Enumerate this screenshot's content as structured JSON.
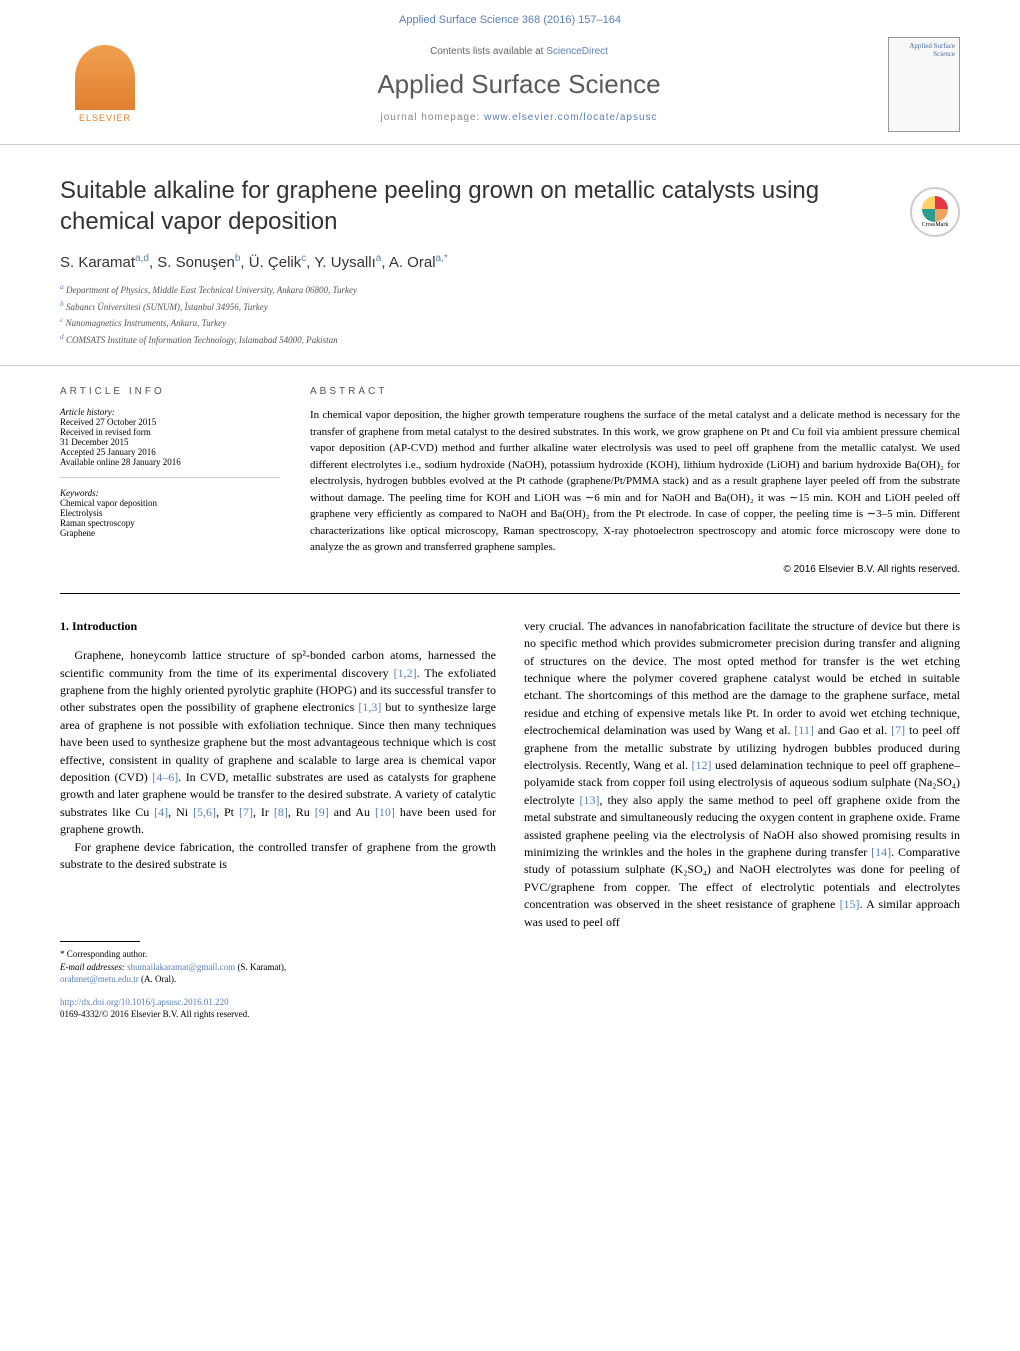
{
  "colors": {
    "link": "#5a7fb5",
    "text": "#000000",
    "heading": "#333333",
    "muted": "#666666",
    "accent_orange": "#e08030"
  },
  "typography": {
    "body_font": "Georgia, serif",
    "heading_font": "Arial, sans-serif",
    "title_size_pt": 24,
    "body_size_pt": 12,
    "abstract_size_pt": 11,
    "small_size_pt": 9
  },
  "header": {
    "citation": "Applied Surface Science 368 (2016) 157–164",
    "contents_text": "Contents lists available at ",
    "contents_link": "ScienceDirect",
    "journal_title": "Applied Surface Science",
    "homepage_label": "journal homepage: ",
    "homepage_url": "www.elsevier.com/locate/apsusc",
    "publisher": "ELSEVIER",
    "cover_label": "Applied Surface Science"
  },
  "article": {
    "title": "Suitable alkaline for graphene peeling grown on metallic catalysts using chemical vapor deposition",
    "crossmark_label": "CrossMark",
    "authors_html": "S. Karamat<sup>a,d</sup>, S. Sonuşen<sup>b</sup>, Ü. Çelik<sup>c</sup>, Y. Uysallı<sup>a</sup>, A. Oral<sup>a,*</sup>",
    "authors": [
      {
        "name": "S. Karamat",
        "marks": "a,d"
      },
      {
        "name": "S. Sonuşen",
        "marks": "b"
      },
      {
        "name": "Ü. Çelik",
        "marks": "c"
      },
      {
        "name": "Y. Uysallı",
        "marks": "a"
      },
      {
        "name": "A. Oral",
        "marks": "a,*"
      }
    ],
    "affiliations": [
      {
        "marker": "a",
        "text": "Department of Physics, Middle East Technical University, Ankara 06800, Turkey"
      },
      {
        "marker": "b",
        "text": "Sabancı Üniversitesi (SUNUM), İstanbul 34956, Turkey"
      },
      {
        "marker": "c",
        "text": "Nanomagnetics Instruments, Ankara, Turkey"
      },
      {
        "marker": "d",
        "text": "COMSATS Institute of Information Technology, Islamabad 54000, Pakistan"
      }
    ]
  },
  "info": {
    "heading": "article info",
    "history_label": "Article history:",
    "history": [
      "Received 27 October 2015",
      "Received in revised form",
      "31 December 2015",
      "Accepted 25 January 2016",
      "Available online 28 January 2016"
    ],
    "keywords_label": "Keywords:",
    "keywords": [
      "Chemical vapor deposition",
      "Electrolysis",
      "Raman spectroscopy",
      "Graphene"
    ]
  },
  "abstract": {
    "heading": "abstract",
    "text": "In chemical vapor deposition, the higher growth temperature roughens the surface of the metal catalyst and a delicate method is necessary for the transfer of graphene from metal catalyst to the desired substrates. In this work, we grow graphene on Pt and Cu foil via ambient pressure chemical vapor deposition (AP-CVD) method and further alkaline water electrolysis was used to peel off graphene from the metallic catalyst. We used different electrolytes i.e., sodium hydroxide (NaOH), potassium hydroxide (KOH), lithium hydroxide (LiOH) and barium hydroxide Ba(OH)₂ for electrolysis, hydrogen bubbles evolved at the Pt cathode (graphene/Pt/PMMA stack) and as a result graphene layer peeled off from the substrate without damage. The peeling time for KOH and LiOH was ∼6 min and for NaOH and Ba(OH)₂ it was ∼15 min. KOH and LiOH peeled off graphene very efficiently as compared to NaOH and Ba(OH)₂ from the Pt electrode. In case of copper, the peeling time is ∼3–5 min. Different characterizations like optical microscopy, Raman spectroscopy, X-ray photoelectron spectroscopy and atomic force microscopy were done to analyze the as grown and transferred graphene samples.",
    "copyright": "© 2016 Elsevier B.V. All rights reserved."
  },
  "body": {
    "intro_heading": "1. Introduction",
    "p1": "Graphene, honeycomb lattice structure of sp²-bonded carbon atoms, harnessed the scientific community from the time of its experimental discovery [1,2]. The exfoliated graphene from the highly oriented pyrolytic graphite (HOPG) and its successful transfer to other substrates open the possibility of graphene electronics [1,3] but to synthesize large area of graphene is not possible with exfoliation technique. Since then many techniques have been used to synthesize graphene but the most advantageous technique which is cost effective, consistent in quality of graphene and scalable to large area is chemical vapor deposition (CVD) [4–6]. In CVD, metallic substrates are used as catalysts for graphene growth and later graphene would be transfer to the desired substrate. A variety of catalytic substrates like Cu [4], Ni [5,6], Pt [7], Ir [8], Ru [9] and Au [10] have been used for graphene growth.",
    "p2": "For graphene device fabrication, the controlled transfer of graphene from the growth substrate to the desired substrate is",
    "p3": "very crucial. The advances in nanofabrication facilitate the structure of device but there is no specific method which provides submicrometer precision during transfer and aligning of structures on the device. The most opted method for transfer is the wet etching technique where the polymer covered graphene catalyst would be etched in suitable etchant. The shortcomings of this method are the damage to the graphene surface, metal residue and etching of expensive metals like Pt. In order to avoid wet etching technique, electrochemical delamination was used by Wang et al. [11] and Gao et al. [7] to peel off graphene from the metallic substrate by utilizing hydrogen bubbles produced during electrolysis. Recently, Wang et al. [12] used delamination technique to peel off graphene–polyamide stack from copper foil using electrolysis of aqueous sodium sulphate (Na₂SO₄) electrolyte [13], they also apply the same method to peel off graphene oxide from the metal substrate and simultaneously reducing the oxygen content in graphene oxide. Frame assisted graphene peeling via the electrolysis of NaOH also showed promising results in minimizing the wrinkles and the holes in the graphene during transfer [14]. Comparative study of potassium sulphate (K₂SO₄) and NaOH electrolytes was done for peeling of PVC/graphene from copper. The effect of electrolytic potentials and electrolytes concentration was observed in the sheet resistance of graphene [15]. A similar approach was used to peel off"
  },
  "footer": {
    "corresponding_label": "* Corresponding author.",
    "email_label": "E-mail addresses: ",
    "email1": "shumailakaramat@gmail.com",
    "email1_author": " (S. Karamat),",
    "email2": "orahmet@metu.edu.tr",
    "email2_author": " (A. Oral).",
    "doi": "http://dx.doi.org/10.1016/j.apsusc.2016.01.220",
    "issn": "0169-4332/© 2016 Elsevier B.V. All rights reserved."
  }
}
